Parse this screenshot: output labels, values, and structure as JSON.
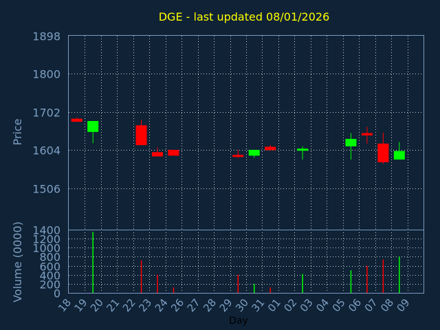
{
  "chart_data": [
    {
      "type": "candlestick",
      "title": "DGE - last updated 08/01/2026",
      "xlabel": "Day",
      "ylabel": "Price",
      "ylim": [
        1400,
        1898
      ],
      "y_ticks": [
        "1898",
        "1800",
        "1702",
        "1604",
        "1506",
        "1400"
      ],
      "x_ticks": [
        "18",
        "19",
        "20",
        "21",
        "22",
        "23",
        "24",
        "26",
        "27",
        "28",
        "29",
        "30",
        "31",
        "01",
        "02",
        "03",
        "04",
        "05",
        "06",
        "07",
        "08",
        "09"
      ],
      "grid": true,
      "colors": {
        "up": "#00ff00",
        "down": "#ff0000",
        "title": "#ffff00",
        "axis_text": "#7e9fc2",
        "frame": "#7b9bbd",
        "grid": "#ffffff",
        "background": "#0f2236"
      },
      "candles": [
        {
          "x": "18",
          "open": 1685,
          "high": 1688,
          "low": 1677,
          "close": 1677
        },
        {
          "x": "19",
          "open": 1651,
          "high": 1679,
          "low": 1622,
          "close": 1679
        },
        {
          "x": "22",
          "open": 1668,
          "high": 1682,
          "low": 1617,
          "close": 1617
        },
        {
          "x": "23",
          "open": 1599,
          "high": 1612,
          "low": 1588,
          "close": 1588
        },
        {
          "x": "24",
          "open": 1605,
          "high": 1605,
          "low": 1590,
          "close": 1590
        },
        {
          "x": "29",
          "open": 1592,
          "high": 1605,
          "low": 1584,
          "close": 1588
        },
        {
          "x": "30",
          "open": 1590,
          "high": 1605,
          "low": 1585,
          "close": 1605
        },
        {
          "x": "31",
          "open": 1613,
          "high": 1617,
          "low": 1604,
          "close": 1604
        },
        {
          "x": "02",
          "open": 1604,
          "high": 1614,
          "low": 1580,
          "close": 1608
        },
        {
          "x": "05",
          "open": 1614,
          "high": 1648,
          "low": 1580,
          "close": 1633
        },
        {
          "x": "06",
          "open": 1648,
          "high": 1664,
          "low": 1621,
          "close": 1642
        },
        {
          "x": "07",
          "open": 1621,
          "high": 1649,
          "low": 1569,
          "close": 1573
        },
        {
          "x": "08",
          "open": 1580,
          "high": 1625,
          "low": 1580,
          "close": 1602
        }
      ]
    },
    {
      "type": "bar",
      "ylabel": "Volume (0000)",
      "ylim": [
        0,
        1400
      ],
      "y_ticks": [
        "1400",
        "1200",
        "1000",
        "800",
        "600",
        "400",
        "200",
        "0"
      ],
      "x_ticks": [
        "18",
        "19",
        "20",
        "21",
        "22",
        "23",
        "24",
        "26",
        "27",
        "28",
        "29",
        "30",
        "31",
        "01",
        "02",
        "03",
        "04",
        "05",
        "06",
        "07",
        "08",
        "09"
      ],
      "grid": true,
      "bars": [
        {
          "x": "19",
          "value": 1350,
          "color": "#00ff00"
        },
        {
          "x": "22",
          "value": 720,
          "color": "#ff0000"
        },
        {
          "x": "23",
          "value": 400,
          "color": "#ff0000"
        },
        {
          "x": "24",
          "value": 120,
          "color": "#ff0000"
        },
        {
          "x": "29",
          "value": 400,
          "color": "#ff0000"
        },
        {
          "x": "30",
          "value": 200,
          "color": "#00ff00"
        },
        {
          "x": "31",
          "value": 120,
          "color": "#ff0000"
        },
        {
          "x": "02",
          "value": 420,
          "color": "#00ff00"
        },
        {
          "x": "05",
          "value": 500,
          "color": "#00ff00"
        },
        {
          "x": "06",
          "value": 600,
          "color": "#ff0000"
        },
        {
          "x": "07",
          "value": 740,
          "color": "#ff0000"
        },
        {
          "x": "08",
          "value": 800,
          "color": "#00ff00"
        }
      ]
    }
  ]
}
